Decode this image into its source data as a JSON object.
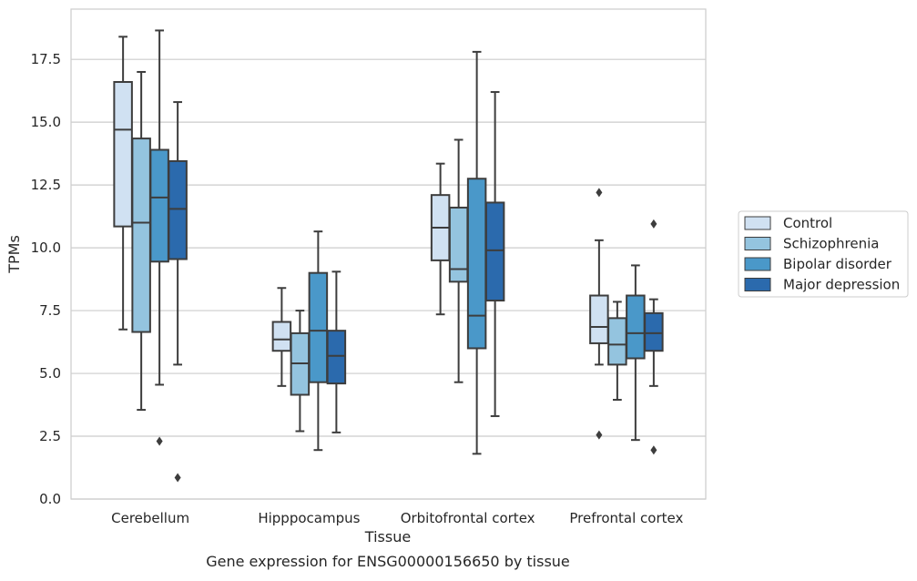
{
  "chart_data": {
    "type": "box",
    "xlabel": "Tissue",
    "ylabel": "TPMs",
    "caption": "Gene expression for ENSG00000156650 by tissue",
    "ylim": [
      0,
      19.5
    ],
    "yticks": [
      0.0,
      2.5,
      5.0,
      7.5,
      10.0,
      12.5,
      15.0,
      17.5
    ],
    "ytick_labels": [
      "0.0",
      "2.5",
      "5.0",
      "7.5",
      "10.0",
      "12.5",
      "15.0",
      "17.5"
    ],
    "grid": "horizontal",
    "legend_position": "outside-right",
    "categories": [
      "Cerebellum",
      "Hipppocampus",
      "Orbitofrontal cortex",
      "Prefrontal cortex"
    ],
    "series": [
      {
        "name": "Control",
        "color": "#d0e1f2",
        "boxes": [
          {
            "whislo": 6.75,
            "q1": 10.85,
            "med": 14.7,
            "q3": 16.6,
            "whishi": 18.4,
            "fliers": []
          },
          {
            "whislo": 4.5,
            "q1": 5.9,
            "med": 6.35,
            "q3": 7.05,
            "whishi": 8.4,
            "fliers": []
          },
          {
            "whislo": 7.35,
            "q1": 9.5,
            "med": 10.8,
            "q3": 12.1,
            "whishi": 13.35,
            "fliers": []
          },
          {
            "whislo": 5.35,
            "q1": 6.2,
            "med": 6.85,
            "q3": 8.1,
            "whishi": 10.3,
            "fliers": [
              12.2,
              2.55
            ]
          }
        ]
      },
      {
        "name": "Schizophrenia",
        "color": "#94c4df",
        "boxes": [
          {
            "whislo": 3.55,
            "q1": 6.65,
            "med": 11.0,
            "q3": 14.35,
            "whishi": 17.0,
            "fliers": []
          },
          {
            "whislo": 2.7,
            "q1": 4.15,
            "med": 5.4,
            "q3": 6.6,
            "whishi": 7.5,
            "fliers": []
          },
          {
            "whislo": 4.65,
            "q1": 8.65,
            "med": 9.15,
            "q3": 11.6,
            "whishi": 14.3,
            "fliers": []
          },
          {
            "whislo": 3.95,
            "q1": 5.35,
            "med": 6.15,
            "q3": 7.2,
            "whishi": 7.85,
            "fliers": []
          }
        ]
      },
      {
        "name": "Bipolar disorder",
        "color": "#4a98c9",
        "boxes": [
          {
            "whislo": 4.55,
            "q1": 9.45,
            "med": 12.0,
            "q3": 13.9,
            "whishi": 18.65,
            "fliers": [
              2.3
            ]
          },
          {
            "whislo": 1.95,
            "q1": 4.65,
            "med": 6.7,
            "q3": 9.0,
            "whishi": 10.65,
            "fliers": []
          },
          {
            "whislo": 1.8,
            "q1": 6.0,
            "med": 7.3,
            "q3": 12.75,
            "whishi": 17.8,
            "fliers": []
          },
          {
            "whislo": 2.35,
            "q1": 5.6,
            "med": 6.6,
            "q3": 8.1,
            "whishi": 9.3,
            "fliers": []
          }
        ]
      },
      {
        "name": "Major depression",
        "color": "#2b6aad",
        "boxes": [
          {
            "whislo": 5.35,
            "q1": 9.55,
            "med": 11.55,
            "q3": 13.45,
            "whishi": 15.8,
            "fliers": [
              0.85
            ]
          },
          {
            "whislo": 2.65,
            "q1": 4.6,
            "med": 5.7,
            "q3": 6.7,
            "whishi": 9.05,
            "fliers": []
          },
          {
            "whislo": 3.3,
            "q1": 7.9,
            "med": 9.9,
            "q3": 11.8,
            "whishi": 16.2,
            "fliers": []
          },
          {
            "whislo": 4.5,
            "q1": 5.9,
            "med": 6.6,
            "q3": 7.4,
            "whishi": 7.95,
            "fliers": [
              10.95,
              1.95
            ]
          }
        ]
      }
    ]
  }
}
